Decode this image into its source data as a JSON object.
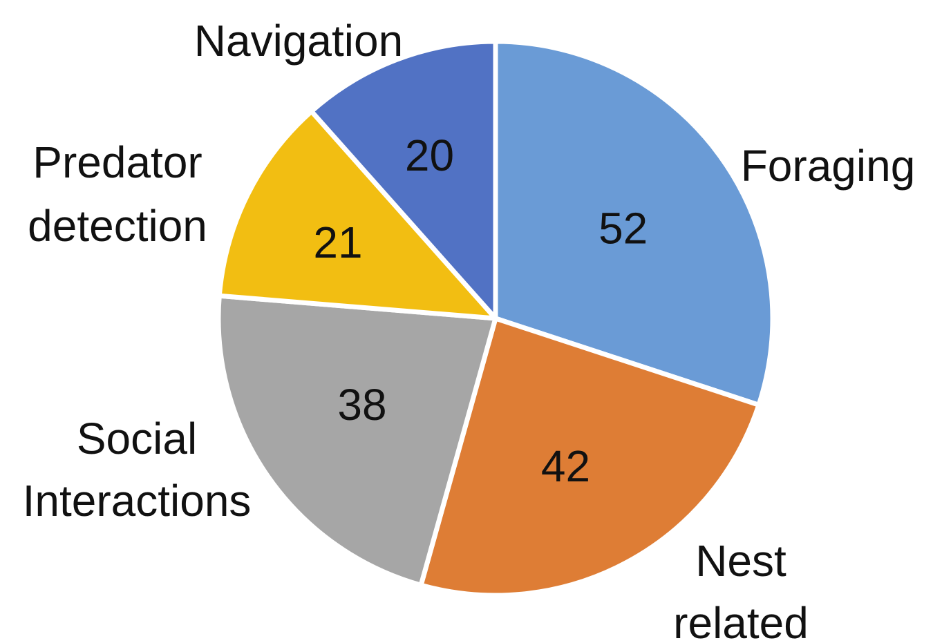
{
  "chart_data": {
    "type": "pie",
    "slices": [
      {
        "label_lines": [
          "Foraging"
        ],
        "value": 52,
        "color": "#6A9BD6"
      },
      {
        "label_lines": [
          "Nest",
          "related"
        ],
        "value": 42,
        "color": "#DE7D35"
      },
      {
        "label_lines": [
          "Social",
          "Interactions"
        ],
        "value": 38,
        "color": "#A6A6A6"
      },
      {
        "label_lines": [
          "Predator",
          "detection"
        ],
        "value": 21,
        "color": "#F2BE12"
      },
      {
        "label_lines": [
          "Navigation"
        ],
        "value": 20,
        "color": "#5172C4"
      }
    ],
    "start": "12 o'clock",
    "direction": "clockwise",
    "legend": "none"
  }
}
